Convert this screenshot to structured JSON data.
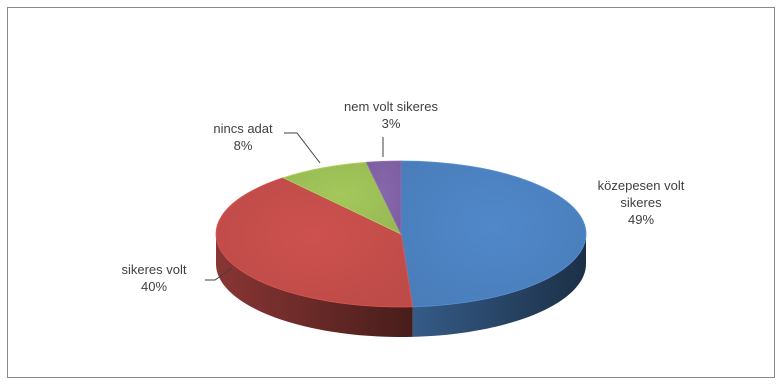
{
  "chart_data": {
    "type": "pie",
    "style": "3d",
    "slices": [
      {
        "label_lines": [
          "közepesen volt",
          "sikeres"
        ],
        "percent_label": "49%",
        "value": 49,
        "color": "#4a7ebb"
      },
      {
        "label_lines": [
          "sikeres volt"
        ],
        "percent_label": "40%",
        "value": 40,
        "color": "#be4b48"
      },
      {
        "label_lines": [
          "nincs adat"
        ],
        "percent_label": "8%",
        "value": 8,
        "color": "#98b954"
      },
      {
        "label_lines": [
          "nem volt sikeres"
        ],
        "percent_label": "3%",
        "value": 3,
        "color": "#7d5fa0"
      }
    ],
    "title": "",
    "legend": "none"
  }
}
